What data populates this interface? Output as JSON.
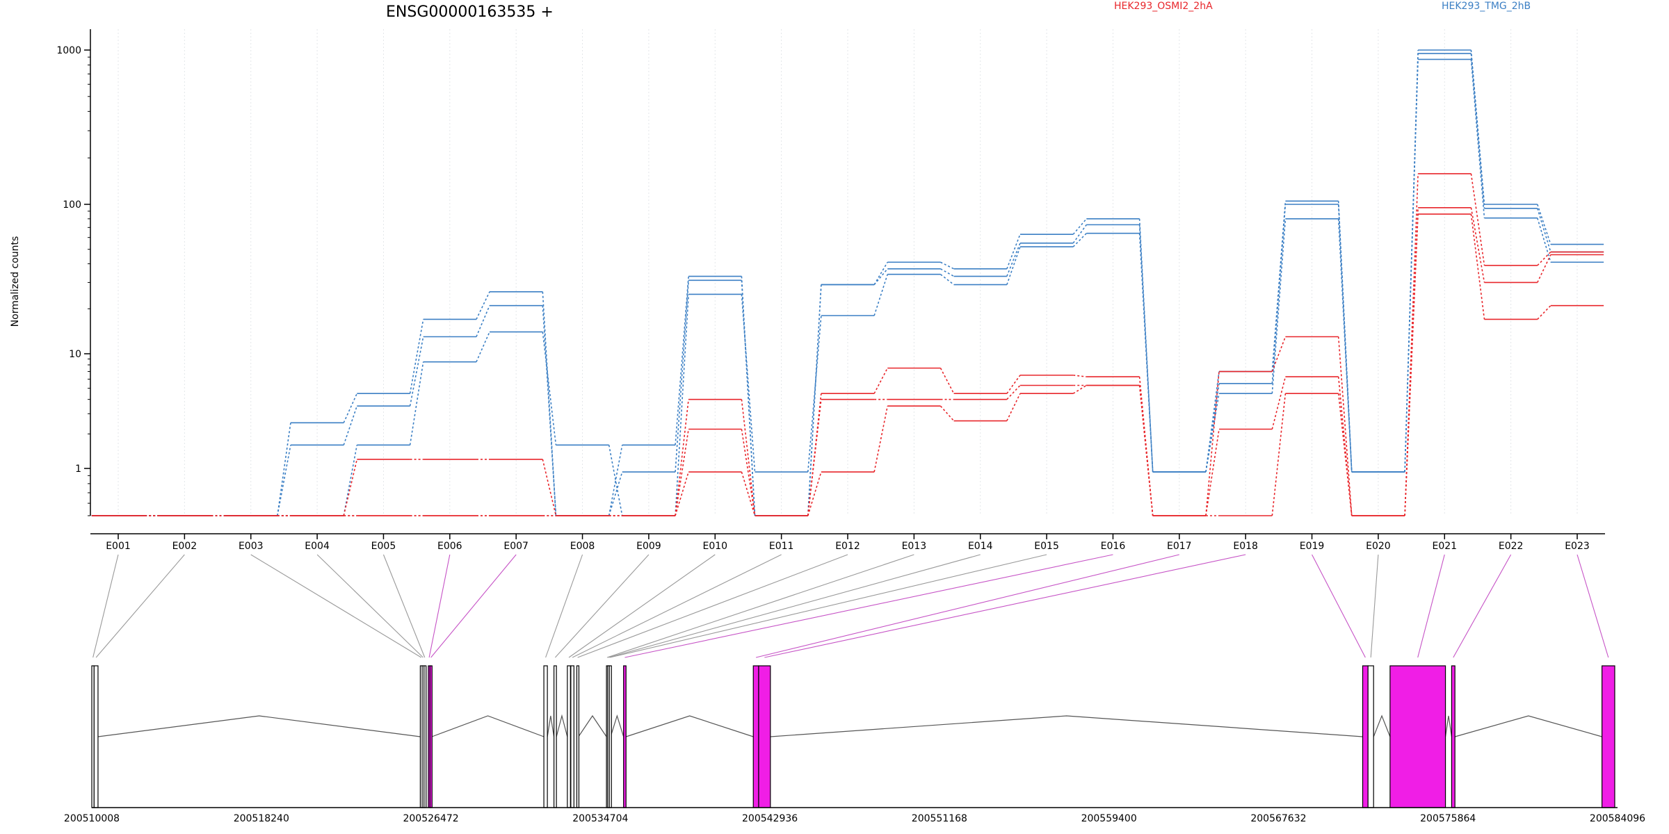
{
  "chart_data": {
    "type": "line",
    "title": "ENSG00000163535 +",
    "ylabel": "Normalized counts",
    "yscale": "log",
    "ylim": [
      0.5,
      1100
    ],
    "yticks": [
      1,
      10,
      100,
      1000
    ],
    "ytick_labels": [
      "1",
      "10",
      "100",
      "1000"
    ],
    "grid": "vertical dotted at exon centers",
    "legend": [
      {
        "label": "HEK293_OSMI2_2hA",
        "color": "#e8262b"
      },
      {
        "label": "HEK293_TMG_2hB",
        "color": "#3b7fc4"
      }
    ],
    "categories": [
      "E001",
      "E002",
      "E003",
      "E004",
      "E005",
      "E006",
      "E007",
      "E008",
      "E009",
      "E010",
      "E011",
      "E012",
      "E013",
      "E014",
      "E015",
      "E016",
      "E017",
      "E018",
      "E019",
      "E020",
      "E021",
      "E022",
      "E023"
    ],
    "series": [
      {
        "group": "HEK293_TMG_2hB",
        "color": "#3b7fc4",
        "values": [
          0.5,
          0.5,
          0.5,
          2.5,
          4.5,
          17,
          26,
          0.5,
          1.6,
          33,
          0.5,
          29,
          41,
          37,
          63,
          80,
          0.95,
          7,
          105,
          0.95,
          1000,
          100,
          54
        ]
      },
      {
        "group": "HEK293_TMG_2hB",
        "color": "#3b7fc4",
        "values": [
          0.5,
          0.5,
          0.5,
          1.6,
          3.5,
          13,
          21,
          0.5,
          0.95,
          31,
          0.5,
          29,
          37,
          33,
          55,
          73,
          0.95,
          5.5,
          100,
          0.95,
          950,
          94,
          48
        ]
      },
      {
        "group": "HEK293_TMG_2hB",
        "color": "#3b7fc4",
        "values": [
          0.5,
          0.5,
          0.5,
          0.5,
          1.6,
          8.5,
          14,
          1.6,
          0.5,
          25,
          0.95,
          18,
          34,
          29,
          52,
          64,
          0.95,
          4.5,
          80,
          0.95,
          870,
          81,
          41
        ]
      },
      {
        "group": "HEK293_OSMI2_2hA",
        "color": "#e8262b",
        "values": [
          0.5,
          0.5,
          0.5,
          0.5,
          1.2,
          1.2,
          1.2,
          0.5,
          0.5,
          4,
          0.5,
          4.5,
          7.5,
          4.5,
          6.5,
          6.3,
          0.5,
          7,
          13,
          0.5,
          158,
          39,
          48
        ]
      },
      {
        "group": "HEK293_OSMI2_2hA",
        "color": "#e8262b",
        "values": [
          0.5,
          0.5,
          0.5,
          0.5,
          0.5,
          0.5,
          0.5,
          0.5,
          0.5,
          2.2,
          0.5,
          4,
          4,
          4,
          5.3,
          5.3,
          0.5,
          2.2,
          6.3,
          0.5,
          95,
          30,
          46
        ]
      },
      {
        "group": "HEK293_OSMI2_2hA",
        "color": "#e8262b",
        "values": [
          0.5,
          0.5,
          0.5,
          0.5,
          0.5,
          0.5,
          0.5,
          0.5,
          0.5,
          0.95,
          0.5,
          0.95,
          3.5,
          2.6,
          4.5,
          5.3,
          0.5,
          0.5,
          4.5,
          0.5,
          86,
          17,
          21
        ]
      }
    ],
    "genomic_ticks": [
      "200510008",
      "200518240",
      "200526472",
      "200534704",
      "200542936",
      "200551168",
      "200559400",
      "200567632",
      "200575864",
      "200584096"
    ],
    "gene_model": {
      "start": 200510008,
      "end": 200584096,
      "highlight_color": "#f01ee6",
      "highlighted_exons": [
        "E006",
        "E007",
        "E016",
        "E017",
        "E018",
        "E019",
        "E021",
        "E022",
        "E023"
      ],
      "exons": [
        {
          "id": "E001",
          "start": 200510008,
          "end": 200510120
        },
        {
          "id": "E002",
          "start": 200510120,
          "end": 200510310
        },
        {
          "id": "E003",
          "start": 200525960,
          "end": 200526050
        },
        {
          "id": "E004",
          "start": 200526050,
          "end": 200526140
        },
        {
          "id": "E005",
          "start": 200526140,
          "end": 200526210
        },
        {
          "id": "E006",
          "start": 200526350,
          "end": 200526430
        },
        {
          "id": "E007",
          "start": 200526430,
          "end": 200526520
        },
        {
          "id": "E008",
          "start": 200531960,
          "end": 200532130
        },
        {
          "id": "E009",
          "start": 200532450,
          "end": 200532570
        },
        {
          "id": "E010",
          "start": 200533100,
          "end": 200533250
        },
        {
          "id": "E011",
          "start": 200533270,
          "end": 200533420
        },
        {
          "id": "E012",
          "start": 200533560,
          "end": 200533640
        },
        {
          "id": "E013",
          "start": 200535000,
          "end": 200535060
        },
        {
          "id": "E014",
          "start": 200535060,
          "end": 200535140
        },
        {
          "id": "E015",
          "start": 200535140,
          "end": 200535200
        },
        {
          "id": "E016",
          "start": 200535830,
          "end": 200535950
        },
        {
          "id": "E017",
          "start": 200542130,
          "end": 200542390
        },
        {
          "id": "E018",
          "start": 200542390,
          "end": 200542960
        },
        {
          "id": "E019",
          "start": 200571720,
          "end": 200571980
        },
        {
          "id": "E020",
          "start": 200571980,
          "end": 200572250
        },
        {
          "id": "E021",
          "start": 200573050,
          "end": 200575740
        },
        {
          "id": "E022",
          "start": 200576040,
          "end": 200576200
        },
        {
          "id": "E023",
          "start": 200583340,
          "end": 200583960
        }
      ],
      "introns": [
        [
          200510310,
          200525960
        ],
        [
          200526520,
          200531960
        ],
        [
          200532130,
          200532450
        ],
        [
          200532570,
          200533100
        ],
        [
          200533640,
          200535000
        ],
        [
          200535200,
          200535830
        ],
        [
          200535950,
          200542130
        ],
        [
          200542960,
          200571720
        ],
        [
          200572250,
          200573050
        ],
        [
          200575740,
          200576040
        ],
        [
          200576200,
          200583340
        ]
      ]
    }
  }
}
